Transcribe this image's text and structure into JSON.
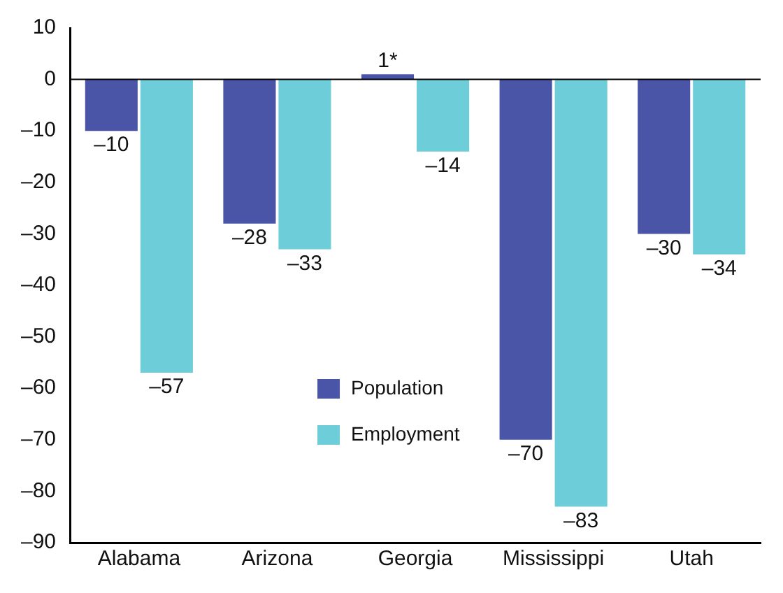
{
  "chart_data": {
    "type": "bar",
    "categories": [
      "Alabama",
      "Arizona",
      "Georgia",
      "Mississippi",
      "Utah"
    ],
    "series": [
      {
        "name": "Population",
        "color": "#4a55a8",
        "values": [
          -10,
          -28,
          1,
          -70,
          -30
        ],
        "value_labels": [
          "–10",
          "–28",
          "1*",
          "–70",
          "–30"
        ]
      },
      {
        "name": "Employment",
        "color": "#6dcdd9",
        "values": [
          -57,
          -33,
          -14,
          -83,
          -34
        ],
        "value_labels": [
          "–57",
          "–33",
          "–14",
          "–83",
          "–34"
        ]
      }
    ],
    "ylim": [
      -90,
      10
    ],
    "yticks": [
      10,
      0,
      {
        "value": -10,
        "label": "–10"
      },
      {
        "value": -20,
        "label": "–20"
      },
      {
        "value": -30,
        "label": "–30"
      },
      {
        "value": -40,
        "label": "–40"
      },
      {
        "value": -50,
        "label": "–50"
      },
      {
        "value": -60,
        "label": "–60"
      },
      {
        "value": -70,
        "label": "–70"
      },
      {
        "value": -80,
        "label": "–80"
      },
      {
        "value": -90,
        "label": "–90"
      }
    ],
    "ref_lines": [
      {
        "axis": "y",
        "value": 0
      }
    ],
    "grid": false,
    "legend": "bottom"
  }
}
